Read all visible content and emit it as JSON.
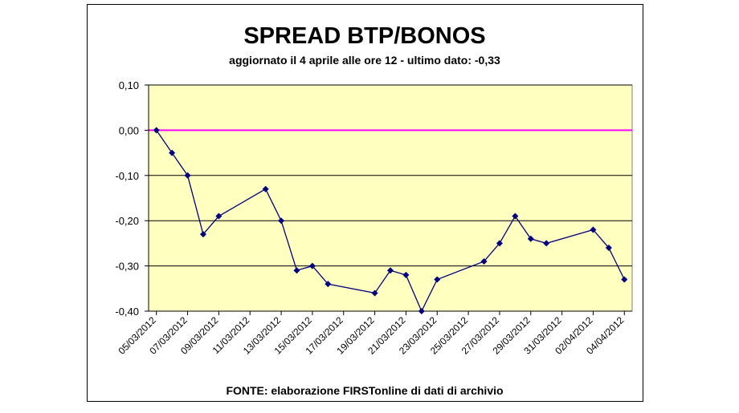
{
  "chart_data": {
    "type": "line",
    "title": "SPREAD BTP/BONOS",
    "subtitle": "aggiornato il 4 aprile alle ore 12 - ultimo dato: -0,33",
    "footer": "FONTE: elaborazione FIRSTonline di dati di archivio",
    "x": [
      "05/03/2012",
      "06/03/2012",
      "07/03/2012",
      "08/03/2012",
      "09/03/2012",
      "12/03/2012",
      "13/03/2012",
      "14/03/2012",
      "15/03/2012",
      "16/03/2012",
      "19/03/2012",
      "20/03/2012",
      "21/03/2012",
      "22/03/2012",
      "23/03/2012",
      "26/03/2012",
      "27/03/2012",
      "28/03/2012",
      "29/03/2012",
      "30/03/2012",
      "02/04/2012",
      "03/04/2012",
      "04/04/2012"
    ],
    "series": [
      {
        "color": "#000080",
        "values": [
          0.0,
          -0.05,
          -0.1,
          -0.23,
          -0.19,
          -0.13,
          -0.2,
          -0.31,
          -0.3,
          -0.34,
          -0.36,
          -0.31,
          -0.32,
          -0.4,
          -0.33,
          -0.29,
          -0.25,
          -0.19,
          -0.24,
          -0.25,
          -0.22,
          -0.26,
          -0.33
        ]
      }
    ],
    "xlim": [
      "05/03/2012",
      "04/04/2012"
    ],
    "xticks": [
      "05/03/2012",
      "07/03/2012",
      "09/03/2012",
      "11/03/2012",
      "13/03/2012",
      "15/03/2012",
      "17/03/2012",
      "19/03/2012",
      "21/03/2012",
      "23/03/2012",
      "25/03/2012",
      "27/03/2012",
      "29/03/2012",
      "31/03/2012",
      "02/04/2012",
      "04/04/2012"
    ],
    "ylim": [
      -0.4,
      0.1
    ],
    "yticks": [
      {
        "value": 0.1,
        "label": "0,10"
      },
      {
        "value": 0,
        "label": "0,00"
      },
      {
        "value": -0.1,
        "label": "-0,10"
      },
      {
        "value": -0.2,
        "label": "-0,20"
      },
      {
        "value": -0.3,
        "label": "-0,30"
      },
      {
        "value": -0.4,
        "label": "-0,40"
      }
    ],
    "grid": true,
    "reference_line": {
      "value": 0,
      "color": "#ff00ff"
    },
    "plot_background": "#ffffc0"
  }
}
